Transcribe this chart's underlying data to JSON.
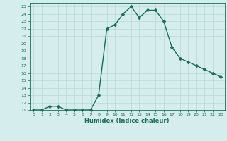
{
  "x": [
    0,
    1,
    2,
    3,
    4,
    5,
    6,
    7,
    8,
    9,
    10,
    11,
    12,
    13,
    14,
    15,
    16,
    17,
    18,
    19,
    20,
    21,
    22,
    23
  ],
  "y": [
    11,
    11,
    11.5,
    11.5,
    11,
    11,
    11,
    11,
    13,
    22,
    22.5,
    24,
    25,
    23.5,
    24.5,
    24.5,
    23,
    19.5,
    18,
    17.5,
    17,
    16.5,
    16,
    15.5
  ],
  "title": "",
  "xlabel": "Humidex (Indice chaleur)",
  "xlim": [
    -0.5,
    23.5
  ],
  "ylim": [
    11,
    25.5
  ],
  "yticks": [
    11,
    12,
    13,
    14,
    15,
    16,
    17,
    18,
    19,
    20,
    21,
    22,
    23,
    24,
    25
  ],
  "xticks": [
    0,
    1,
    2,
    3,
    4,
    5,
    6,
    7,
    8,
    9,
    10,
    11,
    12,
    13,
    14,
    15,
    16,
    17,
    18,
    19,
    20,
    21,
    22,
    23
  ],
  "line_color": "#1a6b5a",
  "bg_color": "#d5eeed",
  "grid_color": "#b8d8d4",
  "marker_size": 2.5,
  "line_width": 1.0
}
